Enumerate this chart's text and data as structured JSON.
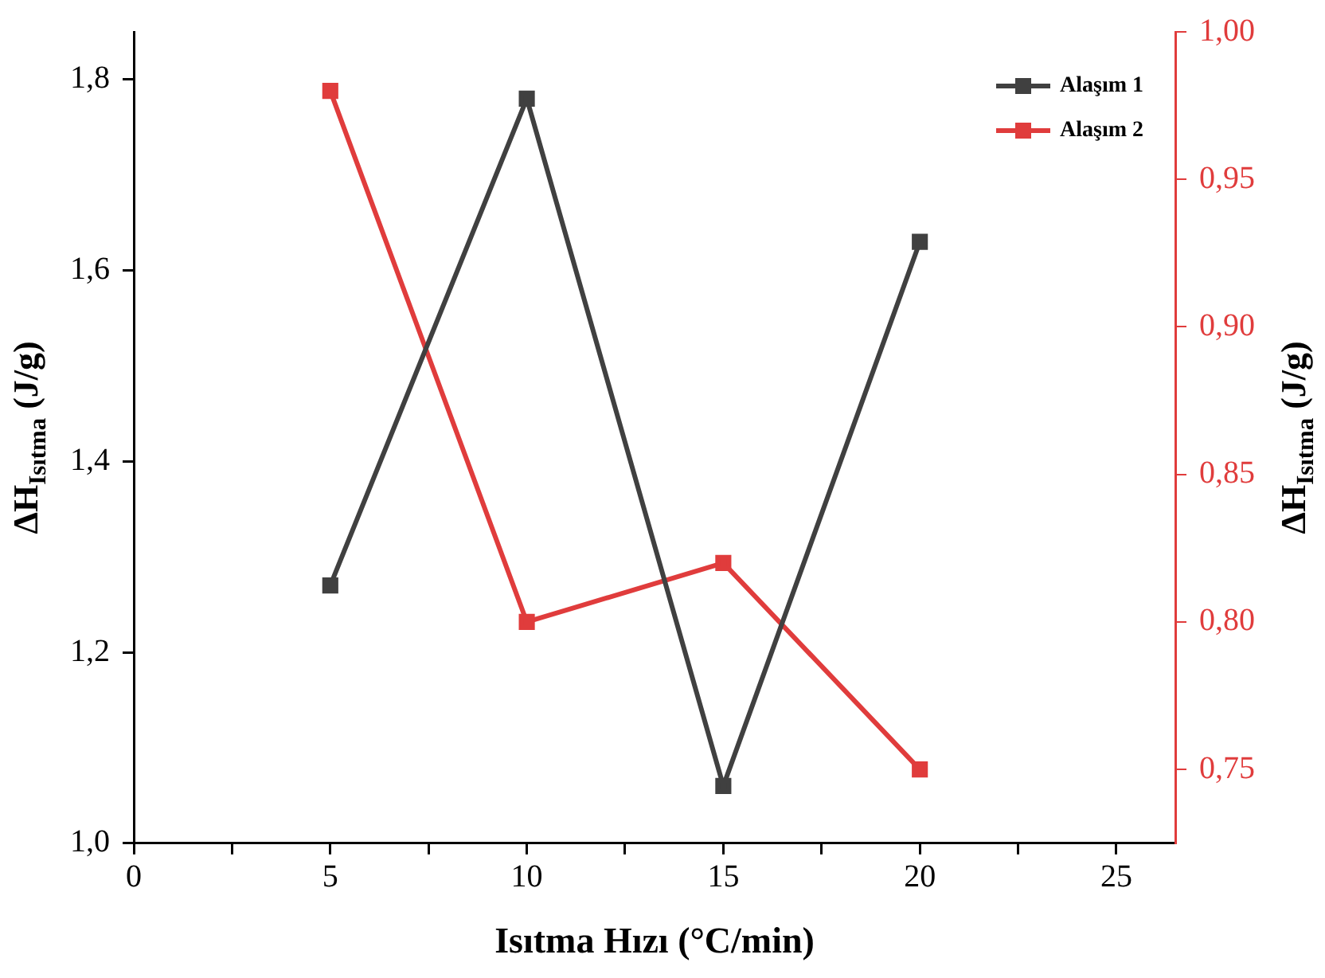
{
  "chart_data": {
    "type": "line",
    "xlabel": "Isıtma Hızı (°C/min)",
    "ylabel": "ΔH$_{Isıtma}$ (J/g)",
    "y2label": "ΔH$_{Isıtma}$ (J/g)",
    "x": [
      5,
      10,
      15,
      20
    ],
    "series": [
      {
        "name": "Alaşım 1",
        "color": "#404040",
        "values": [
          1.27,
          1.78,
          1.06,
          1.63
        ]
      },
      {
        "name": "Alaşım 2",
        "color": "#e03c3c",
        "values": [
          0.98,
          0.8,
          0.82,
          0.75
        ],
        "axis": "y2"
      }
    ],
    "xlim": [
      0,
      26.5
    ],
    "xticks": [
      0,
      {
        "value": 2.5,
        "label": null
      },
      5,
      {
        "value": 7.5,
        "label": null
      },
      10,
      {
        "value": 12.5,
        "label": null
      },
      15,
      {
        "value": 17.5,
        "label": null
      },
      20,
      {
        "value": 22.5,
        "label": null
      },
      25
    ],
    "ylim": [
      1.0,
      1.85
    ],
    "yticks": [
      {
        "value": 1.0,
        "label": "1,0"
      },
      {
        "value": 1.2,
        "label": "1,2"
      },
      {
        "value": 1.4,
        "label": "1,4"
      },
      {
        "value": 1.6,
        "label": "1,6"
      },
      {
        "value": 1.8,
        "label": "1,8"
      }
    ],
    "y2lim": [
      0.725,
      1.0
    ],
    "y2ticks": [
      {
        "value": 0.75,
        "label": "0,75"
      },
      {
        "value": 0.8,
        "label": "0,80"
      },
      {
        "value": 0.85,
        "label": "0,85"
      },
      {
        "value": 0.9,
        "label": "0,90"
      },
      {
        "value": 0.95,
        "label": "0,95"
      },
      {
        "value": 1.0,
        "label": "1,00"
      }
    ],
    "grid": false,
    "legend": "top right",
    "marker": "square",
    "line_style": "solid"
  }
}
